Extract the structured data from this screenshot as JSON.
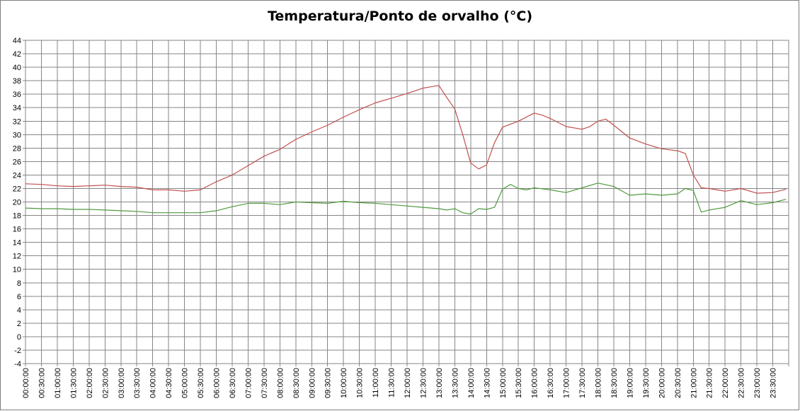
{
  "chart_data": {
    "type": "line",
    "title": "Temperatura/Ponto de orvalho (°C)",
    "xlabel": "",
    "ylabel": "",
    "ylim": [
      -4,
      44
    ],
    "ytick_step": 2,
    "grid": true,
    "legend": "none",
    "x_tick_labels": [
      "00:00:00",
      "00:30:00",
      "01:00:00",
      "01:30:00",
      "02:00:00",
      "02:30:00",
      "03:00:00",
      "03:30:00",
      "04:00:00",
      "04:30:00",
      "05:00:00",
      "05:30:00",
      "06:00:00",
      "06:30:00",
      "07:00:00",
      "07:30:00",
      "08:00:00",
      "08:30:00",
      "09:00:00",
      "09:30:00",
      "10:00:00",
      "10:30:00",
      "11:00:00",
      "11:30:00",
      "12:00:00",
      "12:30:00",
      "13:00:00",
      "13:30:00",
      "14:00:00",
      "14:30:00",
      "15:00:00",
      "15:30:00",
      "16:00:00",
      "16:30:00",
      "17:00:00",
      "17:30:00",
      "18:00:00",
      "18:30:00",
      "19:00:00",
      "19:30:00",
      "20:00:00",
      "20:30:00",
      "21:00:00",
      "21:30:00",
      "22:00:00",
      "22:30:00",
      "23:00:00",
      "23:30:00"
    ],
    "series": [
      {
        "color": "#c0504d",
        "x": [
          "00:00:00",
          "00:30:00",
          "01:00:00",
          "01:30:00",
          "02:00:00",
          "02:30:00",
          "03:00:00",
          "03:30:00",
          "04:00:00",
          "04:30:00",
          "05:00:00",
          "05:30:00",
          "06:00:00",
          "06:30:00",
          "07:00:00",
          "07:30:00",
          "08:00:00",
          "08:30:00",
          "09:00:00",
          "09:30:00",
          "10:00:00",
          "10:30:00",
          "11:00:00",
          "11:30:00",
          "12:00:00",
          "12:30:00",
          "12:45:00",
          "13:00:00",
          "13:15:00",
          "13:30:00",
          "13:45:00",
          "14:00:00",
          "14:15:00",
          "14:30:00",
          "14:45:00",
          "15:00:00",
          "15:30:00",
          "16:00:00",
          "16:15:00",
          "16:30:00",
          "17:00:00",
          "17:30:00",
          "17:45:00",
          "18:00:00",
          "18:15:00",
          "18:30:00",
          "19:00:00",
          "19:30:00",
          "20:00:00",
          "20:30:00",
          "20:45:00",
          "21:00:00",
          "21:15:00",
          "21:30:00",
          "22:00:00",
          "22:30:00",
          "23:00:00",
          "23:30:00",
          "23:55:00"
        ],
        "values": [
          22.7,
          22.6,
          22.4,
          22.3,
          22.4,
          22.5,
          22.3,
          22.2,
          21.8,
          21.8,
          21.6,
          21.8,
          23.0,
          24.0,
          25.4,
          26.8,
          27.8,
          29.3,
          30.4,
          31.4,
          32.6,
          33.7,
          34.7,
          35.4,
          36.1,
          36.9,
          37.1,
          37.3,
          35.5,
          33.8,
          30.0,
          25.8,
          24.9,
          25.5,
          28.8,
          31.1,
          32.0,
          33.2,
          32.9,
          32.4,
          31.2,
          30.8,
          31.2,
          32.0,
          32.3,
          31.4,
          29.5,
          28.6,
          27.9,
          27.6,
          27.2,
          24.0,
          22.1,
          22.0,
          21.6,
          22.0,
          21.3,
          21.4,
          21.9
        ]
      },
      {
        "color": "#4f9a3f",
        "x": [
          "00:00:00",
          "00:30:00",
          "01:00:00",
          "01:30:00",
          "02:00:00",
          "02:30:00",
          "03:00:00",
          "03:30:00",
          "04:00:00",
          "04:30:00",
          "05:00:00",
          "05:30:00",
          "06:00:00",
          "06:30:00",
          "07:00:00",
          "07:30:00",
          "08:00:00",
          "08:30:00",
          "09:00:00",
          "09:30:00",
          "10:00:00",
          "10:30:00",
          "11:00:00",
          "11:30:00",
          "12:00:00",
          "12:30:00",
          "13:00:00",
          "13:15:00",
          "13:30:00",
          "13:45:00",
          "14:00:00",
          "14:15:00",
          "14:30:00",
          "14:45:00",
          "15:00:00",
          "15:15:00",
          "15:30:00",
          "15:45:00",
          "16:00:00",
          "16:30:00",
          "17:00:00",
          "17:30:00",
          "18:00:00",
          "18:30:00",
          "19:00:00",
          "19:30:00",
          "20:00:00",
          "20:30:00",
          "20:45:00",
          "21:00:00",
          "21:15:00",
          "21:30:00",
          "22:00:00",
          "22:30:00",
          "23:00:00",
          "23:30:00",
          "23:55:00"
        ],
        "values": [
          19.1,
          19.0,
          19.0,
          18.9,
          18.9,
          18.8,
          18.7,
          18.6,
          18.4,
          18.4,
          18.4,
          18.4,
          18.7,
          19.3,
          19.8,
          19.8,
          19.6,
          20.0,
          19.9,
          19.8,
          20.1,
          19.9,
          19.8,
          19.6,
          19.4,
          19.2,
          19.0,
          18.8,
          19.0,
          18.4,
          18.2,
          19.0,
          18.9,
          19.2,
          21.9,
          22.6,
          22.0,
          21.8,
          22.1,
          21.8,
          21.4,
          22.1,
          22.8,
          22.3,
          21.0,
          21.2,
          21.0,
          21.2,
          22.0,
          21.7,
          18.5,
          18.8,
          19.2,
          20.2,
          19.6,
          19.9,
          20.4
        ]
      }
    ]
  }
}
